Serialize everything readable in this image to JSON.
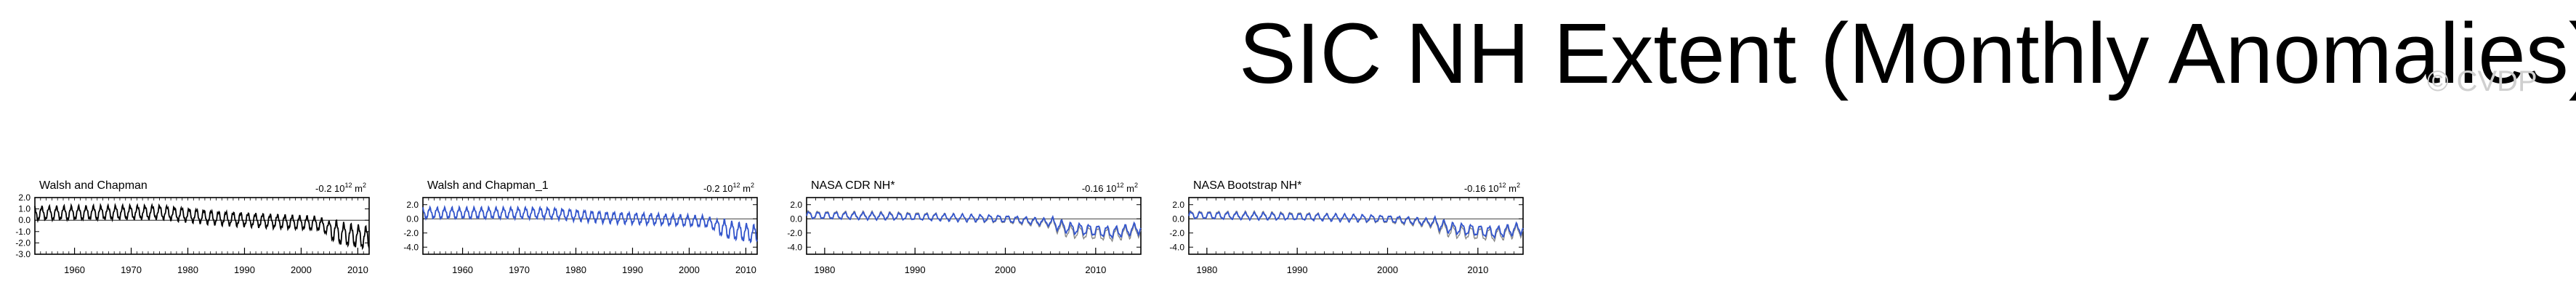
{
  "page_title": "SIC NH Extent (Monthly Anomalies)",
  "watermark": "© CVDP",
  "colors": {
    "black_series": "#000000",
    "blue_series": "#3355cc",
    "grey_series": "#888888"
  },
  "chart_data": [
    {
      "type": "line",
      "title": "Walsh and Chapman",
      "annotation": "-0.2 10",
      "annotation_exp": "12",
      "annotation_unit": " m",
      "annotation_unit_exp": "2",
      "xlim": [
        1953,
        2012
      ],
      "ylim": [
        -3.0,
        2.0
      ],
      "yticks": [
        "2.0",
        "1.0",
        "0.0",
        "-1.0",
        "-2.0",
        "-3.0"
      ],
      "ytick_values": [
        2.0,
        1.0,
        0.0,
        -1.0,
        -2.0,
        -3.0
      ],
      "xticks": [
        "1960",
        "1970",
        "1980",
        "1990",
        "2000",
        "2010"
      ],
      "xtick_values": [
        1960,
        1970,
        1980,
        1990,
        2000,
        2010
      ],
      "series": [
        {
          "color": "#000000",
          "key": "wc_black",
          "amp": 0.55,
          "period": 1.3,
          "start": 1953,
          "end": 2012,
          "trend": [
            [
              1953,
              0.6
            ],
            [
              1975,
              0.7
            ],
            [
              1985,
              0.2
            ],
            [
              1995,
              -0.1
            ],
            [
              2003,
              -0.3
            ],
            [
              2007,
              -1.2
            ],
            [
              2012,
              -1.6
            ]
          ]
        }
      ]
    },
    {
      "type": "line",
      "title": "Walsh and Chapman_1",
      "annotation": "-0.2 10",
      "annotation_exp": "12",
      "annotation_unit": " m",
      "annotation_unit_exp": "2",
      "xlim": [
        1953,
        2012
      ],
      "ylim": [
        -5.0,
        3.0
      ],
      "yticks": [
        "2.0",
        "0.0",
        "-2.0",
        "-4.0"
      ],
      "ytick_values": [
        2.0,
        0.0,
        -2.0,
        -4.0
      ],
      "xticks": [
        "1960",
        "1970",
        "1980",
        "1990",
        "2000",
        "2010"
      ],
      "xtick_values": [
        1960,
        1970,
        1980,
        1990,
        2000,
        2010
      ],
      "series": [
        {
          "color": "#3355cc",
          "key": "wc1_blue",
          "amp": 0.7,
          "period": 1.3,
          "start": 1953,
          "end": 2012,
          "trend": [
            [
              1953,
              0.8
            ],
            [
              1975,
              0.8
            ],
            [
              1985,
              0.2
            ],
            [
              1995,
              -0.1
            ],
            [
              2003,
              -0.4
            ],
            [
              2007,
              -1.6
            ],
            [
              2012,
              -2.2
            ]
          ]
        }
      ]
    },
    {
      "type": "line",
      "title": "NASA CDR NH*",
      "annotation": "-0.16 10",
      "annotation_exp": "12",
      "annotation_unit": " m",
      "annotation_unit_exp": "2",
      "xlim": [
        1978,
        2015
      ],
      "ylim": [
        -5.0,
        3.0
      ],
      "yticks": [
        "2.0",
        "0.0",
        "-2.0",
        "-4.0"
      ],
      "ytick_values": [
        2.0,
        0.0,
        -2.0,
        -4.0
      ],
      "xticks": [
        "1980",
        "1990",
        "2000",
        "2010"
      ],
      "xtick_values": [
        1980,
        1990,
        2000,
        2010
      ],
      "series": [
        {
          "color": "#888888",
          "key": "cdr_grey",
          "amp": 0.5,
          "period": 1.0,
          "start": 1978,
          "end": 2015,
          "trend": [
            [
              1978,
              0.6
            ],
            [
              1990,
              0.4
            ],
            [
              2000,
              -0.1
            ],
            [
              2005,
              -0.7
            ],
            [
              2007,
              -1.8
            ],
            [
              2012,
              -2.3
            ],
            [
              2015,
              -1.6
            ]
          ]
        },
        {
          "color": "#3355cc",
          "key": "cdr_blue",
          "amp": 0.45,
          "period": 1.0,
          "start": 1978,
          "end": 2015,
          "trend": [
            [
              1978,
              0.5
            ],
            [
              1990,
              0.3
            ],
            [
              2000,
              0.0
            ],
            [
              2005,
              -0.5
            ],
            [
              2007,
              -1.3
            ],
            [
              2012,
              -1.9
            ],
            [
              2015,
              -1.3
            ]
          ]
        }
      ]
    },
    {
      "type": "line",
      "title": "NASA Bootstrap NH*",
      "annotation": "-0.16 10",
      "annotation_exp": "12",
      "annotation_unit": " m",
      "annotation_unit_exp": "2",
      "xlim": [
        1978,
        2015
      ],
      "ylim": [
        -5.0,
        3.0
      ],
      "yticks": [
        "2.0",
        "0.0",
        "-2.0",
        "-4.0"
      ],
      "ytick_values": [
        2.0,
        0.0,
        -2.0,
        -4.0
      ],
      "xticks": [
        "1980",
        "1990",
        "2000",
        "2010"
      ],
      "xtick_values": [
        1980,
        1990,
        2000,
        2010
      ],
      "series": [
        {
          "color": "#888888",
          "key": "bs_grey",
          "amp": 0.5,
          "period": 1.0,
          "start": 1978,
          "end": 2015,
          "trend": [
            [
              1978,
              0.6
            ],
            [
              1990,
              0.4
            ],
            [
              2000,
              -0.1
            ],
            [
              2005,
              -0.7
            ],
            [
              2007,
              -1.8
            ],
            [
              2012,
              -2.3
            ],
            [
              2015,
              -1.6
            ]
          ]
        },
        {
          "color": "#3355cc",
          "key": "bs_blue",
          "amp": 0.45,
          "period": 1.0,
          "start": 1978,
          "end": 2015,
          "trend": [
            [
              1978,
              0.5
            ],
            [
              1990,
              0.3
            ],
            [
              2000,
              0.0
            ],
            [
              2005,
              -0.5
            ],
            [
              2007,
              -1.3
            ],
            [
              2012,
              -1.9
            ],
            [
              2015,
              -1.3
            ]
          ]
        }
      ]
    }
  ]
}
